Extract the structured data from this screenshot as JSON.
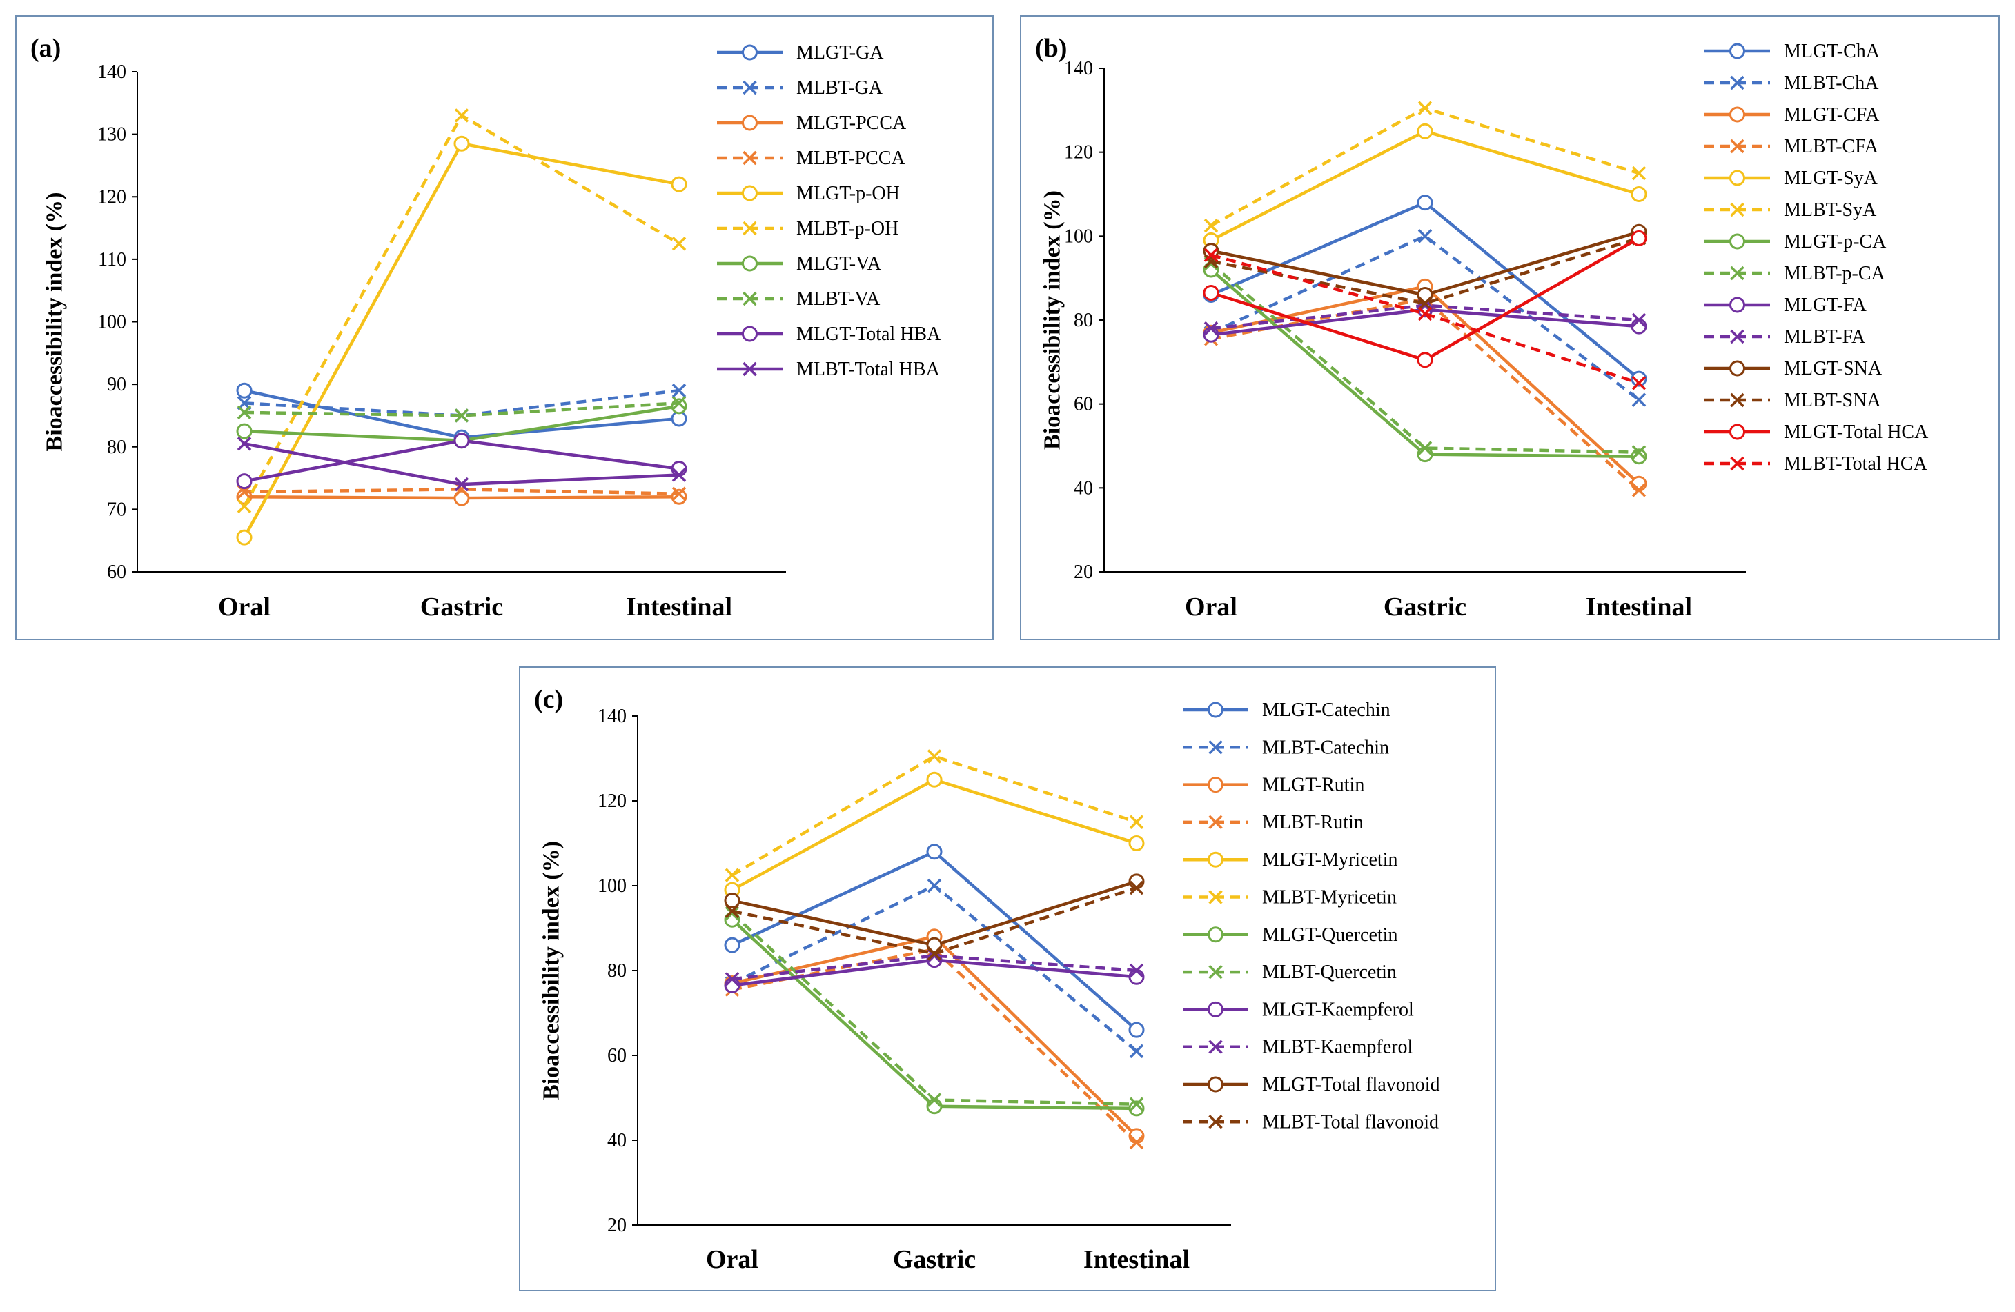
{
  "chart_data": [
    {
      "type": "line",
      "panel": "(a)",
      "xlabel": "",
      "ylabel": "Bioaccessibility index (%)",
      "categories": [
        "Oral",
        "Gastric",
        "Intestinal"
      ],
      "ylim": [
        60,
        140
      ],
      "yticks": [
        "60",
        "70",
        "80",
        "90",
        "100",
        "110",
        "120",
        "130",
        "140"
      ],
      "grid": false,
      "legend": "right",
      "series": [
        {
          "name": "MLGT-GA",
          "values": [
            89,
            81.5,
            84.5
          ],
          "color": "#4472c4",
          "dash": false,
          "marker": "circle"
        },
        {
          "name": "MLBT-GA",
          "values": [
            87,
            85,
            89
          ],
          "color": "#4472c4",
          "dash": true,
          "marker": "x"
        },
        {
          "name": "MLGT-PCCA",
          "values": [
            72,
            71.8,
            72
          ],
          "color": "#ed7d31",
          "dash": false,
          "marker": "circle"
        },
        {
          "name": "MLBT-PCCA",
          "values": [
            72.8,
            73.2,
            72.5
          ],
          "color": "#ed7d31",
          "dash": true,
          "marker": "x"
        },
        {
          "name": "MLGT-p-OH",
          "values": [
            65.5,
            128.5,
            122
          ],
          "color": "#f5c11a",
          "dash": false,
          "marker": "circle"
        },
        {
          "name": "MLBT-p-OH",
          "values": [
            70.5,
            133,
            112.5
          ],
          "color": "#f5c11a",
          "dash": true,
          "marker": "x"
        },
        {
          "name": "MLGT-VA",
          "values": [
            82.5,
            81,
            86.5
          ],
          "color": "#70ad47",
          "dash": false,
          "marker": "circle"
        },
        {
          "name": "MLBT-VA",
          "values": [
            85.5,
            85,
            87
          ],
          "color": "#70ad47",
          "dash": true,
          "marker": "x"
        },
        {
          "name": "MLGT-Total HBA",
          "values": [
            74.5,
            81,
            76.5
          ],
          "color": "#7030a0",
          "dash": false,
          "marker": "circle"
        },
        {
          "name": "MLBT-Total HBA",
          "values": [
            80.5,
            74,
            75.5
          ],
          "color": "#7030a0",
          "dash": false,
          "marker": "x"
        }
      ]
    },
    {
      "type": "line",
      "panel": "(b)",
      "xlabel": "",
      "ylabel": "Bioaccessibility index (%)",
      "categories": [
        "Oral",
        "Gastric",
        "Intestinal"
      ],
      "ylim": [
        20,
        140
      ],
      "yticks": [
        "20",
        "40",
        "60",
        "80",
        "100",
        "120",
        "140"
      ],
      "grid": false,
      "legend": "right",
      "series": [
        {
          "name": "MLGT-ChA",
          "values": [
            86,
            108,
            66
          ],
          "color": "#4472c4",
          "dash": false,
          "marker": "circle"
        },
        {
          "name": "MLBT-ChA",
          "values": [
            77,
            100,
            61
          ],
          "color": "#4472c4",
          "dash": true,
          "marker": "x"
        },
        {
          "name": "MLGT-CFA",
          "values": [
            77,
            88,
            41
          ],
          "color": "#ed7d31",
          "dash": false,
          "marker": "circle"
        },
        {
          "name": "MLBT-CFA",
          "values": [
            75.5,
            85,
            39.5
          ],
          "color": "#ed7d31",
          "dash": true,
          "marker": "x"
        },
        {
          "name": "MLGT-SyA",
          "values": [
            99,
            125,
            110
          ],
          "color": "#f5c11a",
          "dash": false,
          "marker": "circle"
        },
        {
          "name": "MLBT-SyA",
          "values": [
            102.5,
            130.5,
            115
          ],
          "color": "#f5c11a",
          "dash": true,
          "marker": "x"
        },
        {
          "name": "MLGT-p-CA",
          "values": [
            92,
            48,
            47.5
          ],
          "color": "#70ad47",
          "dash": false,
          "marker": "circle"
        },
        {
          "name": "MLBT-p-CA",
          "values": [
            93.5,
            49.5,
            48.5
          ],
          "color": "#70ad47",
          "dash": true,
          "marker": "x"
        },
        {
          "name": "MLGT-FA",
          "values": [
            76.5,
            82.5,
            78.5
          ],
          "color": "#7030a0",
          "dash": false,
          "marker": "circle"
        },
        {
          "name": "MLBT-FA",
          "values": [
            78,
            83.5,
            80
          ],
          "color": "#7030a0",
          "dash": true,
          "marker": "x"
        },
        {
          "name": "MLGT-SNA",
          "values": [
            96.5,
            86,
            101
          ],
          "color": "#843c0c",
          "dash": false,
          "marker": "circle"
        },
        {
          "name": "MLBT-SNA",
          "values": [
            94,
            84,
            99.5
          ],
          "color": "#843c0c",
          "dash": true,
          "marker": "x"
        },
        {
          "name": "MLGT-Total HCA",
          "values": [
            86.5,
            70.5,
            99.5
          ],
          "color": "#e81010",
          "dash": false,
          "marker": "circle"
        },
        {
          "name": "MLBT-Total HCA",
          "values": [
            95.5,
            81.5,
            65
          ],
          "color": "#e81010",
          "dash": true,
          "marker": "x"
        }
      ]
    },
    {
      "type": "line",
      "panel": "(c)",
      "xlabel": "",
      "ylabel": "Bioaccessibility index (%)",
      "categories": [
        "Oral",
        "Gastric",
        "Intestinal"
      ],
      "ylim": [
        20,
        140
      ],
      "yticks": [
        "20",
        "40",
        "60",
        "80",
        "100",
        "120",
        "140"
      ],
      "grid": false,
      "legend": "right",
      "series": [
        {
          "name": "MLGT-Catechin",
          "values": [
            86,
            108,
            66
          ],
          "color": "#4472c4",
          "dash": false,
          "marker": "circle"
        },
        {
          "name": "MLBT-Catechin",
          "values": [
            77,
            100,
            61
          ],
          "color": "#4472c4",
          "dash": true,
          "marker": "x"
        },
        {
          "name": "MLGT-Rutin",
          "values": [
            77,
            88,
            41
          ],
          "color": "#ed7d31",
          "dash": false,
          "marker": "circle"
        },
        {
          "name": "MLBT-Rutin",
          "values": [
            75.5,
            85,
            39.5
          ],
          "color": "#ed7d31",
          "dash": true,
          "marker": "x"
        },
        {
          "name": "MLGT-Myricetin",
          "values": [
            99,
            125,
            110
          ],
          "color": "#f5c11a",
          "dash": false,
          "marker": "circle"
        },
        {
          "name": "MLBT-Myricetin",
          "values": [
            102.5,
            130.5,
            115
          ],
          "color": "#f5c11a",
          "dash": true,
          "marker": "x"
        },
        {
          "name": "MLGT-Quercetin",
          "values": [
            92,
            48,
            47.5
          ],
          "color": "#70ad47",
          "dash": false,
          "marker": "circle"
        },
        {
          "name": "MLBT-Quercetin",
          "values": [
            93.5,
            49.5,
            48.5
          ],
          "color": "#70ad47",
          "dash": true,
          "marker": "x"
        },
        {
          "name": "MLGT-Kaempferol",
          "values": [
            76.5,
            82.5,
            78.5
          ],
          "color": "#7030a0",
          "dash": false,
          "marker": "circle"
        },
        {
          "name": "MLBT-Kaempferol",
          "values": [
            78,
            83.5,
            80
          ],
          "color": "#7030a0",
          "dash": true,
          "marker": "x"
        },
        {
          "name": "MLGT-Total flavonoid",
          "values": [
            96.5,
            86,
            101
          ],
          "color": "#843c0c",
          "dash": false,
          "marker": "circle"
        },
        {
          "name": "MLBT-Total flavonoid",
          "values": [
            94,
            84,
            99.5
          ],
          "color": "#843c0c",
          "dash": true,
          "marker": "x"
        }
      ]
    }
  ]
}
